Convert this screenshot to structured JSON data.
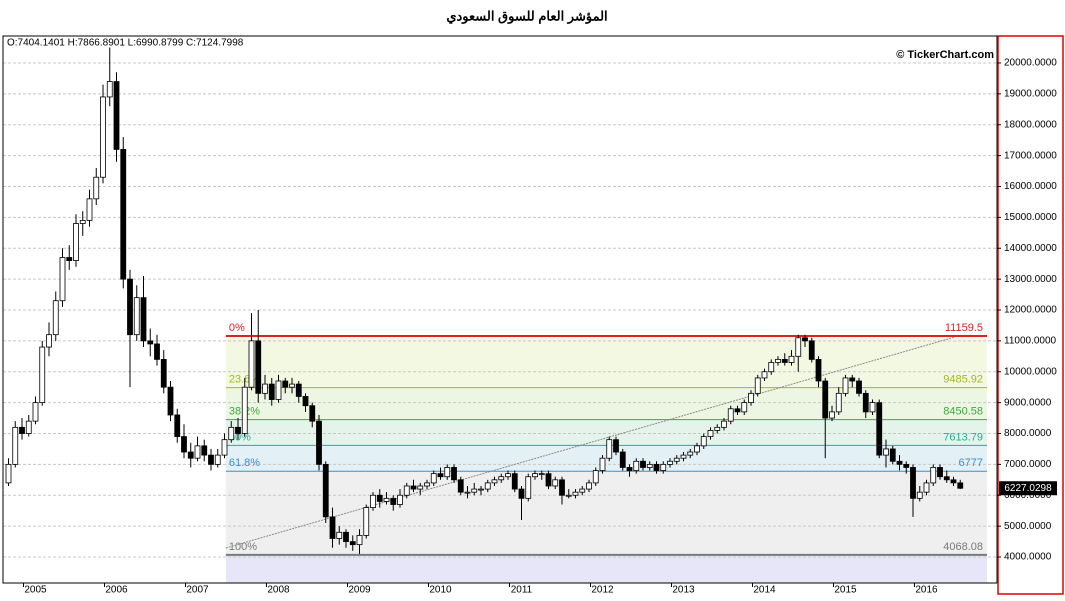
{
  "chart_data": {
    "type": "candlestick",
    "title": "المؤشر العام للسوق السعودي",
    "ohlc_text": "O:7404.1401 H:7866.8901 L:6990.8799 C:7124.7998",
    "copyright": "© TickerChart.com",
    "last_price": {
      "value": 6227.0298,
      "label": "6227.0298"
    },
    "up_color": "#ffffff",
    "down_color": "#000000",
    "grid": true,
    "ylim": [
      3158,
      20874
    ],
    "yticks": [
      {
        "value": 4000,
        "label": "4000.0000"
      },
      {
        "value": 5000,
        "label": "5000.0000"
      },
      {
        "value": 6000,
        "label": "6000.0000"
      },
      {
        "value": 7000,
        "label": "7000.0000"
      },
      {
        "value": 8000,
        "label": "8000.0000"
      },
      {
        "value": 9000,
        "label": "9000.0000"
      },
      {
        "value": 10000,
        "label": "10000.0000"
      },
      {
        "value": 11000,
        "label": "11000.0000"
      },
      {
        "value": 12000,
        "label": "12000.0000"
      },
      {
        "value": 13000,
        "label": "13000.0000"
      },
      {
        "value": 14000,
        "label": "14000.0000"
      },
      {
        "value": 15000,
        "label": "15000.0000"
      },
      {
        "value": 16000,
        "label": "16000.0000"
      },
      {
        "value": 17000,
        "label": "17000.0000"
      },
      {
        "value": 18000,
        "label": "18000.0000"
      },
      {
        "value": 19000,
        "label": "19000.0000"
      },
      {
        "value": 20000,
        "label": "20000.0000"
      }
    ],
    "xticks": [
      {
        "value": 4,
        "label": "2005"
      },
      {
        "value": 16,
        "label": "2006"
      },
      {
        "value": 28,
        "label": "2007"
      },
      {
        "value": 40,
        "label": "2008"
      },
      {
        "value": 52,
        "label": "2009"
      },
      {
        "value": 64,
        "label": "2010"
      },
      {
        "value": 76,
        "label": "2011"
      },
      {
        "value": 88,
        "label": "2012"
      },
      {
        "value": 100,
        "label": "2013"
      },
      {
        "value": 112,
        "label": "2014"
      },
      {
        "value": 124,
        "label": "2015"
      },
      {
        "value": 136,
        "label": "2016"
      }
    ],
    "candles": [
      [
        6400,
        7200,
        6300,
        7000
      ],
      [
        7000,
        8400,
        6900,
        8200
      ],
      [
        8200,
        8500,
        7800,
        8000
      ],
      [
        8000,
        8600,
        7900,
        8400
      ],
      [
        8400,
        9200,
        8300,
        9000
      ],
      [
        9000,
        11000,
        8900,
        10800
      ],
      [
        10800,
        11600,
        10500,
        11200
      ],
      [
        11200,
        12600,
        11000,
        12300
      ],
      [
        12300,
        14000,
        12100,
        13700
      ],
      [
        13700,
        14100,
        13300,
        13600
      ],
      [
        13600,
        15100,
        13400,
        14800
      ],
      [
        14800,
        15200,
        14400,
        14900
      ],
      [
        14900,
        15900,
        14700,
        15600
      ],
      [
        15600,
        16600,
        15400,
        16300
      ],
      [
        16300,
        19300,
        16100,
        18900
      ],
      [
        18900,
        20500,
        18600,
        19400
      ],
      [
        19400,
        19700,
        16800,
        17200
      ],
      [
        17200,
        17600,
        12700,
        13000
      ],
      [
        13000,
        13300,
        9500,
        11200
      ],
      [
        11200,
        12800,
        11000,
        12400
      ],
      [
        12400,
        13100,
        10800,
        11000
      ],
      [
        11000,
        11400,
        10500,
        10900
      ],
      [
        10900,
        11200,
        10200,
        10400
      ],
      [
        10400,
        10700,
        9300,
        9500
      ],
      [
        9500,
        9700,
        8400,
        8600
      ],
      [
        8600,
        8800,
        7700,
        7900
      ],
      [
        7900,
        8300,
        7200,
        7400
      ],
      [
        7400,
        7700,
        6900,
        7200
      ],
      [
        7200,
        7900,
        7100,
        7600
      ],
      [
        7600,
        7800,
        7100,
        7300
      ],
      [
        7300,
        7500,
        6800,
        7000
      ],
      [
        7000,
        7500,
        6900,
        7300
      ],
      [
        7300,
        8000,
        7200,
        7800
      ],
      [
        7800,
        8400,
        7700,
        8200
      ],
      [
        8200,
        8500,
        7800,
        8000
      ],
      [
        8000,
        9800,
        7900,
        9500
      ],
      [
        9500,
        11900,
        9400,
        11000
      ],
      [
        11000,
        12000,
        9000,
        9300
      ],
      [
        9300,
        9900,
        9100,
        9600
      ],
      [
        9600,
        9800,
        8900,
        9100
      ],
      [
        9100,
        9900,
        9000,
        9700
      ],
      [
        9700,
        9800,
        9300,
        9500
      ],
      [
        9500,
        9800,
        9300,
        9600
      ],
      [
        9600,
        9700,
        9000,
        9200
      ],
      [
        9200,
        9300,
        8700,
        8900
      ],
      [
        8900,
        9000,
        8200,
        8400
      ],
      [
        8400,
        8600,
        6800,
        7000
      ],
      [
        7000,
        7100,
        5100,
        5300
      ],
      [
        5300,
        5600,
        4300,
        4600
      ],
      [
        4600,
        5000,
        4400,
        4800
      ],
      [
        4800,
        4900,
        4300,
        4500
      ],
      [
        4500,
        4700,
        4200,
        4400
      ],
      [
        4400,
        4900,
        4100,
        4700
      ],
      [
        4700,
        5700,
        4600,
        5600
      ],
      [
        5600,
        6100,
        5500,
        6000
      ],
      [
        6000,
        6200,
        5600,
        5800
      ],
      [
        5800,
        6100,
        5700,
        5900
      ],
      [
        5900,
        6000,
        5500,
        5700
      ],
      [
        5700,
        6200,
        5600,
        6000
      ],
      [
        6000,
        6400,
        5900,
        6300
      ],
      [
        6300,
        6500,
        6100,
        6200
      ],
      [
        6200,
        6400,
        6000,
        6300
      ],
      [
        6300,
        6500,
        6200,
        6400
      ],
      [
        6400,
        6800,
        6300,
        6700
      ],
      [
        6700,
        6900,
        6500,
        6600
      ],
      [
        6600,
        7000,
        6500,
        6900
      ],
      [
        6900,
        7000,
        6400,
        6500
      ],
      [
        6500,
        6600,
        6000,
        6100
      ],
      [
        6100,
        6300,
        5900,
        6100
      ],
      [
        6100,
        6400,
        6000,
        6200
      ],
      [
        6200,
        6300,
        6000,
        6200
      ],
      [
        6200,
        6500,
        6100,
        6400
      ],
      [
        6400,
        6600,
        6300,
        6500
      ],
      [
        6500,
        6700,
        6400,
        6600
      ],
      [
        6600,
        6800,
        6500,
        6700
      ],
      [
        6700,
        6800,
        6100,
        6200
      ],
      [
        6200,
        6300,
        5200,
        5900
      ],
      [
        5900,
        6700,
        5800,
        6600
      ],
      [
        6600,
        6800,
        6500,
        6700
      ],
      [
        6700,
        6800,
        6500,
        6700
      ],
      [
        6700,
        6800,
        6200,
        6300
      ],
      [
        6300,
        6600,
        6200,
        6500
      ],
      [
        6500,
        6600,
        5700,
        6000
      ],
      [
        6000,
        6200,
        5900,
        6000
      ],
      [
        6000,
        6200,
        5900,
        6100
      ],
      [
        6100,
        6300,
        6000,
        6200
      ],
      [
        6200,
        6500,
        6100,
        6400
      ],
      [
        6400,
        6900,
        6300,
        6800
      ],
      [
        6800,
        7300,
        6700,
        7200
      ],
      [
        7200,
        7900,
        7100,
        7800
      ],
      [
        7800,
        7900,
        7300,
        7400
      ],
      [
        7400,
        7500,
        6800,
        6900
      ],
      [
        6900,
        7000,
        6600,
        6800
      ],
      [
        6800,
        7200,
        6700,
        7100
      ],
      [
        7100,
        7200,
        6800,
        6900
      ],
      [
        6900,
        7100,
        6800,
        7000
      ],
      [
        7000,
        7100,
        6700,
        6800
      ],
      [
        6800,
        7100,
        6700,
        7000
      ],
      [
        7000,
        7200,
        6900,
        7100
      ],
      [
        7100,
        7300,
        7000,
        7200
      ],
      [
        7200,
        7400,
        7100,
        7300
      ],
      [
        7300,
        7500,
        7200,
        7400
      ],
      [
        7400,
        7700,
        7300,
        7600
      ],
      [
        7600,
        8000,
        7500,
        7900
      ],
      [
        7900,
        8200,
        7800,
        8100
      ],
      [
        8100,
        8300,
        8000,
        8200
      ],
      [
        8200,
        8500,
        8100,
        8400
      ],
      [
        8400,
        8900,
        8300,
        8800
      ],
      [
        8800,
        8900,
        8600,
        8700
      ],
      [
        8700,
        9100,
        8600,
        9000
      ],
      [
        9000,
        9400,
        8900,
        9300
      ],
      [
        9300,
        9900,
        9200,
        9800
      ],
      [
        9800,
        10100,
        9700,
        10000
      ],
      [
        10000,
        10400,
        9900,
        10300
      ],
      [
        10300,
        10500,
        10200,
        10400
      ],
      [
        10400,
        10600,
        10200,
        10300
      ],
      [
        10300,
        10700,
        10200,
        10500
      ],
      [
        10500,
        11200,
        10000,
        11100
      ],
      [
        11100,
        11200,
        10800,
        11000
      ],
      [
        11000,
        11100,
        10300,
        10400
      ],
      [
        10400,
        10500,
        9500,
        9700
      ],
      [
        9700,
        9800,
        7200,
        8500
      ],
      [
        8500,
        8900,
        8400,
        8700
      ],
      [
        8700,
        9500,
        8600,
        9300
      ],
      [
        9300,
        9900,
        9200,
        9800
      ],
      [
        9800,
        9900,
        9500,
        9700
      ],
      [
        9700,
        9800,
        9200,
        9300
      ],
      [
        9300,
        9400,
        8500,
        8700
      ],
      [
        8700,
        9100,
        8600,
        9000
      ],
      [
        9000,
        9100,
        7200,
        7300
      ],
      [
        7300,
        7800,
        6900,
        7500
      ],
      [
        7500,
        7600,
        7000,
        7100
      ],
      [
        7100,
        7300,
        6800,
        7000
      ],
      [
        7000,
        7100,
        6700,
        6900
      ],
      [
        6900,
        7000,
        5300,
        5900
      ],
      [
        5900,
        6300,
        5800,
        6100
      ],
      [
        6100,
        6500,
        6000,
        6400
      ],
      [
        6400,
        7000,
        6300,
        6900
      ],
      [
        6900,
        7000,
        6500,
        6600
      ],
      [
        6600,
        6800,
        6400,
        6500
      ],
      [
        6500,
        6600,
        6300,
        6400
      ],
      [
        6400,
        6500,
        6200,
        6227.0298
      ]
    ],
    "trendline": {
      "from": [
        32.2,
        4291
      ],
      "to": [
        140.2,
        11126
      ],
      "color": "#888888"
    },
    "fib": {
      "start": 32.2,
      "levels": [
        {
          "label": "0%",
          "value": 11159.5,
          "color": "#e02020",
          "fill": "#f3f8e2"
        },
        {
          "label": "23.6%",
          "value": 9485.92,
          "color": "#a3b81e",
          "fill": "#ecf6e2"
        },
        {
          "label": "38.2%",
          "value": 8450.58,
          "color": "#3caa3c",
          "fill": "#e5f4ea"
        },
        {
          "label": "50%",
          "value": 7613.79,
          "color": "#2aaa96",
          "fill": "#e3f0f6"
        },
        {
          "label": "61.8%",
          "value": 6777,
          "color": "#3b8fd0",
          "fill": "#efefef"
        },
        {
          "label": "100%",
          "value": 4068.08,
          "color": "#7a7a7a",
          "fill": "#e6e6f8"
        }
      ]
    }
  }
}
